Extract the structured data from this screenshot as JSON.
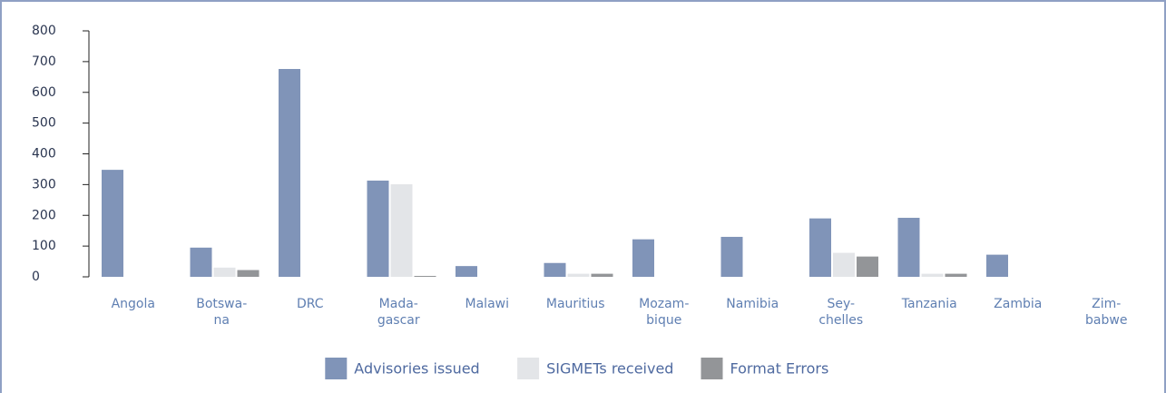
{
  "chart_data": {
    "type": "bar",
    "categories": [
      "Angola",
      "Botswa-\nna",
      "DRC",
      "Mada-\ngascar",
      "Malawi",
      "Mauritius",
      "Mozam-\nbique",
      "Namibia",
      "Sey-\nchelles",
      "Tanzania",
      "Zambia",
      "Zim-\nbabwe"
    ],
    "series": [
      {
        "name": "Advisories issued",
        "color": "#8094b8",
        "values": [
          348,
          95,
          676,
          313,
          35,
          45,
          122,
          130,
          190,
          192,
          72,
          0
        ]
      },
      {
        "name": "SIGMETs received",
        "color": "#e3e5e8",
        "values": [
          0,
          30,
          0,
          301,
          0,
          10,
          0,
          0,
          78,
          10,
          0,
          0
        ]
      },
      {
        "name": "Format Errors",
        "color": "#939598",
        "values": [
          0,
          22,
          0,
          3,
          0,
          10,
          0,
          0,
          66,
          10,
          0,
          0
        ]
      }
    ],
    "ylim": [
      0,
      800
    ],
    "yticks": [
      0,
      100,
      200,
      300,
      400,
      500,
      600,
      700,
      800
    ],
    "legend": "bottom"
  }
}
